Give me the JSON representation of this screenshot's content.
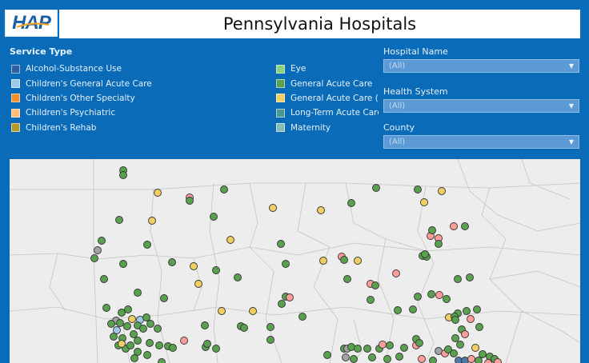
{
  "header": {
    "logo_text": "HAP",
    "title": "Pennsylvania Hospitals"
  },
  "legend": {
    "title": "Service Type",
    "left_items": [
      {
        "label": "Alcohol-Substance Use",
        "color": "#2e5f9f"
      },
      {
        "label": "Children's General Acute Care",
        "color": "#9ecae9"
      },
      {
        "label": "Children's Other Specialty",
        "color": "#f28e2b"
      },
      {
        "label": "Children's Psychiatric",
        "color": "#ffbe7d"
      },
      {
        "label": "Children's Rehab",
        "color": "#b6992d"
      }
    ],
    "right_items": [
      {
        "label": "Eye",
        "color": "#8cd17d"
      },
      {
        "label": "General Acute Care",
        "color": "#59a14f"
      },
      {
        "label": "General Acute Care (C",
        "color": "#f1ce63"
      },
      {
        "label": "Long-Term Acute Care",
        "color": "#499894"
      },
      {
        "label": "Maternity",
        "color": "#86bcb6"
      }
    ]
  },
  "filters": [
    {
      "label": "Hospital Name",
      "value": "(All)"
    },
    {
      "label": "Health System",
      "value": "(All)"
    },
    {
      "label": "County",
      "value": "(All)"
    }
  ],
  "colors": {
    "green": "#59a14f",
    "yellow": "#f1ce63",
    "pink": "#ff9d9a",
    "gray": "#a3a3a3",
    "blue": "#4e79a7",
    "light_blue": "#9ecae9",
    "orange": "#f28e2b"
  }
}
